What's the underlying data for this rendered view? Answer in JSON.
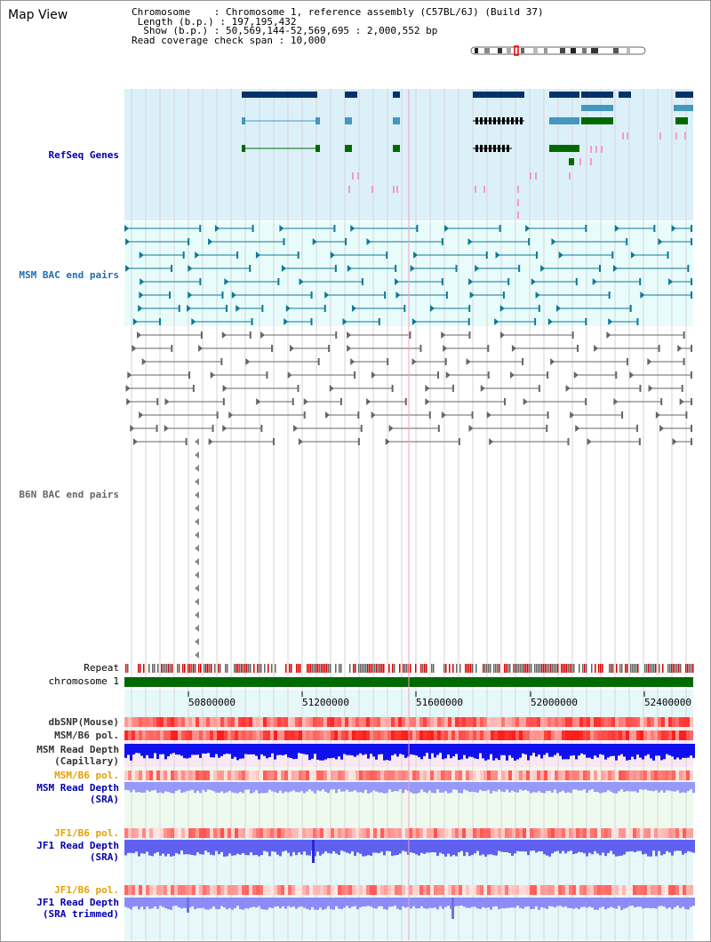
{
  "title": "Map View",
  "header": {
    "chromosome_key": "Chromosome",
    "chromosome_value": "Chromosome 1, reference assembly (C57BL/6J) (Build 37)",
    "length_key": "Length (b.p.)",
    "length_value": "197,195,432",
    "show_key": "Show (b.p.)",
    "show_value": "50,569,144-52,569,695 : 2,000,552 bp",
    "coverage_key": "Read coverage check span",
    "coverage_value": "10,000"
  },
  "tracks": {
    "refseq": "RefSeq Genes",
    "msm_bac": "MSM BAC end pairs",
    "b6n_bac": "B6N BAC end pairs",
    "repeat": "Repeat",
    "chromosome": "chromosome 1",
    "dbsnp": "dbSNP(Mouse)",
    "msm_b6_pol_1": "MSM/B6 pol.",
    "msm_read_depth_cap_1": "MSM Read Depth",
    "msm_read_depth_cap_2": "(Capillary)",
    "msm_b6_pol_2": "MSM/B6 pol.",
    "msm_read_depth_sra_1": "MSM Read Depth",
    "msm_read_depth_sra_2": "(SRA)",
    "jf1_b6_pol_1": "JF1/B6 pol.",
    "jf1_read_depth_sra_1": "JF1 Read Depth",
    "jf1_read_depth_sra_2": "(SRA)",
    "jf1_b6_pol_2": "JF1/B6 pol.",
    "jf1_read_depth_trim_1": "JF1 Read Depth",
    "jf1_read_depth_trim_2": "(SRA trimmed)"
  },
  "axis": {
    "ticks": [
      "50800000",
      "51200000",
      "51600000",
      "52000000",
      "52400000"
    ]
  },
  "colors": {
    "refseq_bg": "#dcf0fa",
    "bac_bg": "#e8fcfc",
    "gene_dark": "#00336a",
    "gene_mid": "#4597bd",
    "gene_green": "#006a00",
    "msm_bac": "#0e7896",
    "b6n_bac": "#666666",
    "label_blue": "#0000b0",
    "label_orange": "#e6a000",
    "msm_label": "#1e6fb0"
  }
}
